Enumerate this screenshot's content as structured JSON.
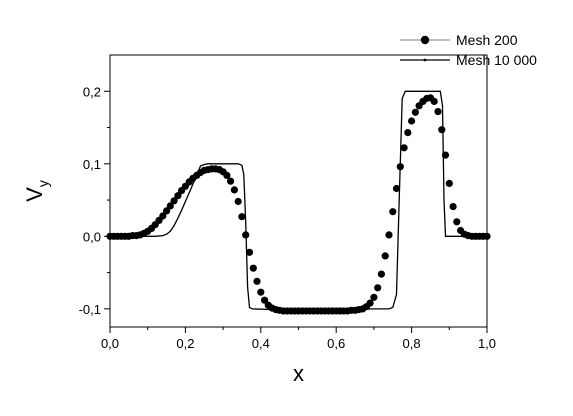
{
  "chart_data": {
    "type": "line",
    "xlabel": "x",
    "ylabel": "V",
    "ylabel_sub": "y",
    "xlim": [
      0.0,
      1.0
    ],
    "ylim": [
      -0.125,
      0.25
    ],
    "x_ticks": [
      {
        "v": 0.0,
        "label": "0,0"
      },
      {
        "v": 0.2,
        "label": "0,2"
      },
      {
        "v": 0.4,
        "label": "0,4"
      },
      {
        "v": 0.6,
        "label": "0,6"
      },
      {
        "v": 0.8,
        "label": "0,8"
      },
      {
        "v": 1.0,
        "label": "1,0"
      }
    ],
    "y_ticks": [
      {
        "v": -0.1,
        "label": "-0,1"
      },
      {
        "v": 0.0,
        "label": "0,0"
      },
      {
        "v": 0.1,
        "label": "0,1"
      },
      {
        "v": 0.2,
        "label": "0,2"
      }
    ],
    "grid": false,
    "legend_position": "top-right",
    "series": [
      {
        "name": "Mesh 200",
        "style": "markers",
        "color": "#000000",
        "x": [
          0.0,
          0.01,
          0.02,
          0.03,
          0.04,
          0.05,
          0.06,
          0.07,
          0.08,
          0.09,
          0.1,
          0.11,
          0.12,
          0.13,
          0.14,
          0.15,
          0.16,
          0.17,
          0.18,
          0.19,
          0.2,
          0.21,
          0.22,
          0.23,
          0.24,
          0.25,
          0.26,
          0.27,
          0.28,
          0.29,
          0.3,
          0.31,
          0.32,
          0.33,
          0.34,
          0.35,
          0.36,
          0.37,
          0.38,
          0.39,
          0.4,
          0.41,
          0.42,
          0.43,
          0.44,
          0.45,
          0.46,
          0.47,
          0.48,
          0.49,
          0.5,
          0.51,
          0.52,
          0.53,
          0.54,
          0.55,
          0.56,
          0.57,
          0.58,
          0.59,
          0.6,
          0.61,
          0.62,
          0.63,
          0.64,
          0.65,
          0.66,
          0.67,
          0.68,
          0.69,
          0.7,
          0.71,
          0.72,
          0.73,
          0.74,
          0.75,
          0.76,
          0.77,
          0.78,
          0.79,
          0.8,
          0.81,
          0.82,
          0.83,
          0.84,
          0.85,
          0.86,
          0.87,
          0.88,
          0.89,
          0.9,
          0.91,
          0.92,
          0.93,
          0.94,
          0.95,
          0.96,
          0.97,
          0.98,
          0.99,
          1.0
        ],
        "y": [
          0.0,
          0.0,
          0.0,
          0.0,
          0.0,
          0.0,
          0.001,
          0.001,
          0.002,
          0.004,
          0.007,
          0.011,
          0.016,
          0.022,
          0.028,
          0.035,
          0.042,
          0.049,
          0.056,
          0.063,
          0.069,
          0.075,
          0.08,
          0.084,
          0.088,
          0.091,
          0.092,
          0.093,
          0.093,
          0.092,
          0.089,
          0.084,
          0.076,
          0.064,
          0.048,
          0.027,
          0.002,
          -0.022,
          -0.044,
          -0.062,
          -0.077,
          -0.088,
          -0.095,
          -0.099,
          -0.101,
          -0.102,
          -0.103,
          -0.103,
          -0.103,
          -0.103,
          -0.103,
          -0.103,
          -0.103,
          -0.103,
          -0.103,
          -0.103,
          -0.103,
          -0.103,
          -0.103,
          -0.103,
          -0.103,
          -0.103,
          -0.103,
          -0.103,
          -0.102,
          -0.102,
          -0.101,
          -0.1,
          -0.097,
          -0.092,
          -0.084,
          -0.071,
          -0.052,
          -0.027,
          0.002,
          0.034,
          0.066,
          0.096,
          0.122,
          0.143,
          0.159,
          0.171,
          0.18,
          0.186,
          0.19,
          0.191,
          0.186,
          0.172,
          0.147,
          0.112,
          0.073,
          0.041,
          0.02,
          0.008,
          0.003,
          0.001,
          0.0,
          0.0,
          0.0,
          0.0,
          0.0
        ]
      },
      {
        "name": "Mesh 10 000",
        "style": "line",
        "color": "#000000",
        "x": [
          0.0,
          0.12,
          0.14,
          0.15,
          0.16,
          0.17,
          0.18,
          0.19,
          0.2,
          0.21,
          0.22,
          0.23,
          0.236,
          0.24,
          0.25,
          0.26,
          0.27,
          0.28,
          0.29,
          0.3,
          0.31,
          0.32,
          0.33,
          0.34,
          0.35,
          0.355,
          0.36,
          0.365,
          0.37,
          0.378,
          0.44,
          0.5,
          0.56,
          0.62,
          0.7,
          0.74,
          0.75,
          0.76,
          0.767,
          0.775,
          0.783,
          0.8,
          0.86,
          0.876,
          0.882,
          0.886,
          0.89,
          1.0
        ],
        "y": [
          0.0,
          0.0,
          0.001,
          0.003,
          0.007,
          0.015,
          0.025,
          0.036,
          0.048,
          0.06,
          0.072,
          0.084,
          0.092,
          0.097,
          0.099,
          0.1,
          0.1,
          0.1,
          0.1,
          0.1,
          0.1,
          0.1,
          0.1,
          0.1,
          0.098,
          0.085,
          0.02,
          -0.07,
          -0.098,
          -0.1,
          -0.101,
          -0.101,
          -0.101,
          -0.101,
          -0.1,
          -0.1,
          -0.098,
          -0.08,
          0.05,
          0.19,
          0.2,
          0.2,
          0.2,
          0.2,
          0.18,
          0.05,
          0.0,
          0.0
        ]
      }
    ]
  }
}
